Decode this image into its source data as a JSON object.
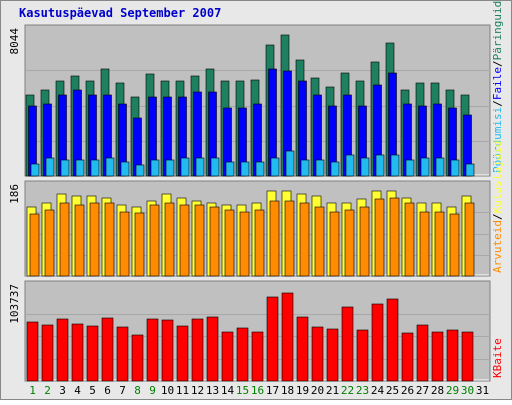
{
  "title": "Kasutuspäevad September 2007",
  "colors": {
    "frame_bg": "#e8e8e8",
    "plot_bg": "#c0c0c0",
    "title": "#0000cc",
    "pages_green": "#1e8060",
    "files_blue": "#0000ff",
    "hits_cyan": "#22bbee",
    "visits_yellow": "#ffff33",
    "sites_orange": "#ff8c00",
    "kbytes_red": "#ff0000",
    "weekend_day": "#008000",
    "weekday_day": "#000000"
  },
  "chart_data": {
    "type": "bar",
    "title": "Kasutuspäevad September 2007",
    "categories": [
      "1",
      "2",
      "3",
      "4",
      "5",
      "6",
      "7",
      "8",
      "9",
      "10",
      "11",
      "12",
      "13",
      "14",
      "15",
      "16",
      "17",
      "18",
      "19",
      "20",
      "21",
      "22",
      "23",
      "24",
      "25",
      "26",
      "27",
      "28",
      "29",
      "30",
      "31"
    ],
    "weekend_days": [
      "1",
      "2",
      "8",
      "9",
      "15",
      "16",
      "22",
      "23",
      "29",
      "30"
    ],
    "panels": [
      {
        "name": "top",
        "ymax_label": "8044",
        "ymax": 8044,
        "legend": [
          "Päringuid",
          "Faile",
          "Pöördumisi"
        ],
        "series": [
          {
            "name": "Päringuid",
            "color": "#1e8060",
            "values": [
              4600,
              4900,
              5400,
              5700,
              5400,
              6100,
              5300,
              4500,
              5800,
              5400,
              5400,
              5700,
              6100,
              5400,
              5400,
              5500,
              7500,
              8044,
              6600,
              5600,
              5100,
              5900,
              5400,
              6500,
              7600,
              4900,
              5300,
              5300,
              4900,
              4600,
              null
            ]
          },
          {
            "name": "Faile",
            "color": "#0000ff",
            "values": [
              4000,
              4100,
              4600,
              4900,
              4600,
              4600,
              4100,
              3300,
              4500,
              4500,
              4500,
              4800,
              4800,
              3900,
              3900,
              4100,
              6100,
              6000,
              5400,
              4600,
              4000,
              4600,
              4000,
              5200,
              5900,
              4100,
              4000,
              4100,
              3900,
              3500,
              null
            ]
          },
          {
            "name": "Pöördumisi",
            "color": "#22bbee",
            "values": [
              700,
              1000,
              900,
              900,
              900,
              1000,
              800,
              600,
              900,
              900,
              1000,
              1000,
              1000,
              800,
              800,
              800,
              1000,
              1400,
              900,
              900,
              800,
              1200,
              1000,
              1200,
              1200,
              900,
              1000,
              1000,
              900,
              700,
              null
            ]
          }
        ]
      },
      {
        "name": "middle",
        "ymax_label": "186",
        "ymax": 186,
        "legend": [
          "Külastajaid",
          "Arvuteid"
        ],
        "series": [
          {
            "name": "Külastajaid",
            "color": "#ffff33",
            "values": [
              150,
              160,
              180,
              175,
              175,
              170,
              155,
              150,
              165,
              180,
              170,
              165,
              160,
              155,
              155,
              160,
              186,
              186,
              180,
              175,
              160,
              160,
              168,
              186,
              186,
              170,
              160,
              160,
              150,
              175,
              null
            ]
          },
          {
            "name": "Arvuteid",
            "color": "#ff8c00",
            "values": [
              135,
              145,
              160,
              155,
              160,
              160,
              140,
              137,
              155,
              160,
              155,
              155,
              150,
              145,
              140,
              145,
              165,
              165,
              160,
              150,
              140,
              145,
              150,
              168,
              170,
              160,
              140,
              140,
              135,
              160,
              null
            ]
          }
        ]
      },
      {
        "name": "bottom",
        "ymax_label": "103737",
        "ymax": 103737,
        "legend": [
          "KBaite"
        ],
        "series": [
          {
            "name": "KBaite",
            "color": "#ff0000",
            "values": [
              68000,
              64500,
              72000,
              65500,
              63500,
              72500,
              62000,
              53000,
              71500,
              70000,
              63500,
              72000,
              74000,
              56000,
              61000,
              57000,
              97000,
              101000,
              73500,
              62500,
              60000,
              85000,
              59000,
              89000,
              94000,
              55000,
              65000,
              56500,
              59000,
              57000,
              null
            ]
          }
        ]
      }
    ]
  }
}
